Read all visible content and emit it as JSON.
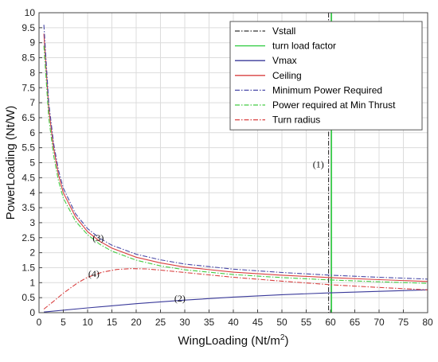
{
  "chart_data": {
    "type": "line",
    "title": "",
    "xlabel": "WingLoading (Nt/m",
    "xlabel_sup": "2",
    "xlabel_end": ")",
    "ylabel": "PowerLoading (Nt/W)",
    "xlim": [
      0,
      80
    ],
    "ylim": [
      0,
      10
    ],
    "xticks": [
      0,
      5,
      10,
      15,
      20,
      25,
      30,
      35,
      40,
      45,
      50,
      55,
      60,
      65,
      70,
      75,
      80
    ],
    "yticks": [
      0,
      0.5,
      1,
      1.5,
      2,
      2.5,
      3,
      3.5,
      4,
      4.5,
      5,
      5.5,
      6,
      6.5,
      7,
      7.5,
      8,
      8.5,
      9,
      9.5,
      10
    ],
    "grid": true,
    "legend_position": "top-right",
    "series": [
      {
        "name": "Vstall",
        "kind": "vertical",
        "x": 59.6,
        "color": "#333333",
        "dash": "dashdot"
      },
      {
        "name": "turn load factor",
        "kind": "vertical",
        "x": 60.2,
        "color": "#2ecc40",
        "dash": "solid"
      },
      {
        "name": "Vmax",
        "color": "#3a3a9a",
        "dash": "solid",
        "x": [
          1,
          10,
          20,
          30,
          40,
          50,
          60,
          70,
          80
        ],
        "y": [
          0.02,
          0.16,
          0.3,
          0.42,
          0.52,
          0.6,
          0.66,
          0.71,
          0.76
        ]
      },
      {
        "name": "Ceiling",
        "color": "#d94040",
        "dash": "solid",
        "x": [
          1,
          2,
          3,
          4,
          5,
          7.5,
          10,
          12.5,
          15,
          20,
          25,
          30,
          40,
          50,
          60,
          70,
          80
        ],
        "y": [
          9.3,
          6.8,
          5.5,
          4.6,
          4.0,
          3.2,
          2.7,
          2.38,
          2.15,
          1.85,
          1.66,
          1.52,
          1.35,
          1.25,
          1.17,
          1.1,
          1.04
        ]
      },
      {
        "name": "Minimum Power Required",
        "color": "#4a4aa8",
        "dash": "dashdot",
        "x": [
          1,
          2,
          3,
          4,
          5,
          7.5,
          10,
          12.5,
          15,
          20,
          25,
          30,
          40,
          50,
          60,
          70,
          80
        ],
        "y": [
          9.6,
          7.0,
          5.65,
          4.75,
          4.15,
          3.3,
          2.8,
          2.48,
          2.25,
          1.95,
          1.76,
          1.62,
          1.45,
          1.34,
          1.25,
          1.18,
          1.12
        ]
      },
      {
        "name": "Power required at Min Thrust",
        "color": "#44cc44",
        "dash": "dashdot",
        "x": [
          1,
          2,
          3,
          4,
          5,
          7.5,
          10,
          12.5,
          15,
          20,
          25,
          30,
          40,
          50,
          60,
          70,
          80
        ],
        "y": [
          8.9,
          6.5,
          5.25,
          4.4,
          3.82,
          3.05,
          2.6,
          2.28,
          2.05,
          1.75,
          1.56,
          1.43,
          1.27,
          1.17,
          1.09,
          1.03,
          0.98
        ]
      },
      {
        "name": "Turn radius",
        "color": "#d94040",
        "dash": "dashdot",
        "x": [
          1,
          3,
          5,
          8,
          10,
          13,
          16,
          19,
          22,
          25,
          30,
          35,
          40,
          50,
          60,
          70,
          80
        ],
        "y": [
          0.12,
          0.38,
          0.65,
          1.0,
          1.18,
          1.35,
          1.44,
          1.47,
          1.46,
          1.42,
          1.34,
          1.26,
          1.18,
          1.05,
          0.93,
          0.84,
          0.76
        ]
      }
    ],
    "annotations": [
      {
        "text": "(1)",
        "x": 57.5,
        "y": 4.95
      },
      {
        "text": "(2)",
        "x": 29,
        "y": 0.48
      },
      {
        "text": "(3)",
        "x": 12.2,
        "y": 2.5
      },
      {
        "text": "(4)",
        "x": 11.3,
        "y": 1.3
      }
    ]
  }
}
